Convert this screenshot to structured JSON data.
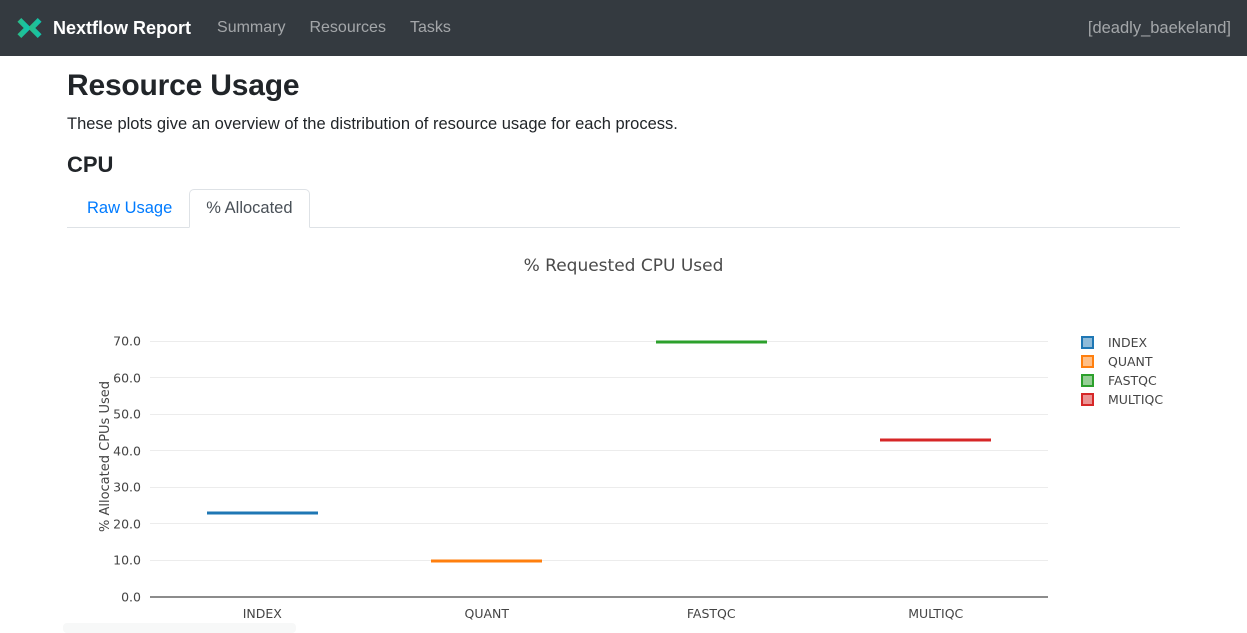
{
  "navbar": {
    "brand": "Nextflow Report",
    "items": [
      {
        "label": "Summary"
      },
      {
        "label": "Resources"
      },
      {
        "label": "Tasks"
      }
    ],
    "run_name": "[deadly_baekeland]"
  },
  "page": {
    "title": "Resource Usage",
    "subtitle": "These plots give an overview of the distribution of resource usage for each process.",
    "section_heading": "CPU"
  },
  "tabs": [
    {
      "label": "Raw Usage",
      "active": false
    },
    {
      "label": "% Allocated",
      "active": true
    }
  ],
  "chart_data": {
    "type": "box",
    "title": "% Requested CPU Used",
    "xlabel": "",
    "ylabel": "% Allocated CPUs Used",
    "categories": [
      "INDEX",
      "QUANT",
      "FASTQC",
      "MULTIQC"
    ],
    "values": [
      23,
      10,
      70,
      43
    ],
    "series": [
      {
        "name": "INDEX",
        "median": 23,
        "color": "#1f77b4",
        "fill": "#8fbbd9"
      },
      {
        "name": "QUANT",
        "median": 10,
        "color": "#ff7f0e",
        "fill": "#ffbf86"
      },
      {
        "name": "FASTQC",
        "median": 70,
        "color": "#2ca02c",
        "fill": "#95cf95"
      },
      {
        "name": "MULTIQC",
        "median": 43,
        "color": "#d62728",
        "fill": "#eb9393"
      }
    ],
    "ylim": [
      0,
      77
    ],
    "yticks": [
      0,
      10,
      20,
      30,
      40,
      50,
      60,
      70
    ],
    "ytick_labels": [
      "0.0",
      "10.0",
      "20.0",
      "30.0",
      "40.0",
      "50.0",
      "60.0",
      "70.0"
    ],
    "grid": true,
    "legend_position": "right-outside"
  },
  "colors": {
    "navbar_bg": "#343a40",
    "brand_teal_start": "#28bd8b",
    "brand_teal_end": "#12c4ab",
    "tab_link_blue": "#007bff",
    "tab_border": "#dee2e6",
    "axis_line": "#8c8c8c",
    "gridline": "#ececec",
    "chart_text": "#444444"
  }
}
